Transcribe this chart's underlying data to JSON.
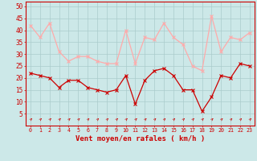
{
  "x": [
    0,
    1,
    2,
    3,
    4,
    5,
    6,
    7,
    8,
    9,
    10,
    11,
    12,
    13,
    14,
    15,
    16,
    17,
    18,
    19,
    20,
    21,
    22,
    23
  ],
  "wind_avg": [
    22,
    21,
    20,
    16,
    19,
    19,
    16,
    15,
    14,
    15,
    21,
    9,
    19,
    23,
    24,
    21,
    15,
    15,
    6,
    12,
    21,
    20,
    26,
    25
  ],
  "wind_gust": [
    42,
    37,
    43,
    31,
    27,
    29,
    29,
    27,
    26,
    26,
    40,
    26,
    37,
    36,
    43,
    37,
    34,
    25,
    23,
    46,
    31,
    37,
    36,
    39
  ],
  "avg_color": "#cc0000",
  "gust_color": "#ffaaaa",
  "bg_color": "#cce8e8",
  "grid_color": "#aacccc",
  "xlabel": "Vent moyen/en rafales ( km/h )",
  "xlabel_color": "#cc0000",
  "ylabel_color": "#cc0000",
  "yticks": [
    5,
    10,
    15,
    20,
    25,
    30,
    35,
    40,
    45,
    50
  ],
  "ylim": [
    0,
    52
  ],
  "xlim": [
    -0.5,
    23.5
  ]
}
